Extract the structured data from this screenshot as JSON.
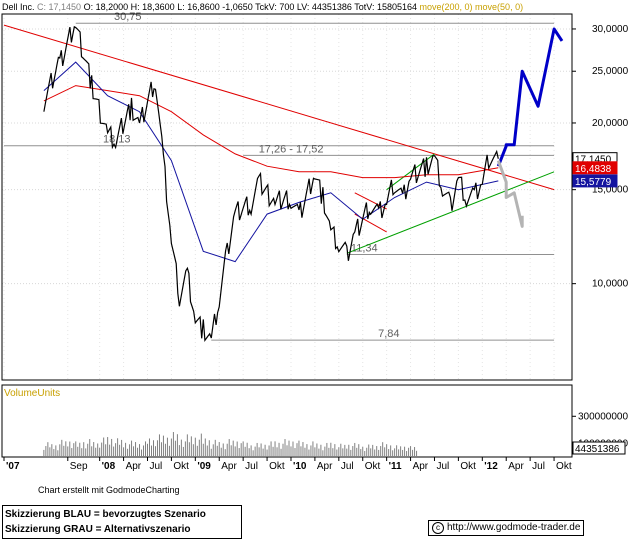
{
  "header": {
    "ticker": "Dell Inc.",
    "close": "C: 17,1450",
    "open": "O: 18,2000",
    "high": "H: 18,3600",
    "low": "L: 16,8600",
    "change": "-1,0650",
    "tick_volume": "TckV: 700",
    "last_volume": "LV: 44351386",
    "total_volume": "TotV: 15805164",
    "ma200_label": "move(200, 0)",
    "ma50_label": "move(50, 0)"
  },
  "colors": {
    "price": "#000000",
    "ma200": "#e00000",
    "ma50": "#1414a0",
    "support": "#00a000",
    "scenario_blue": "#0000c8",
    "scenario_gray": "#b4b4b4"
  },
  "chart_data": [
    {
      "type": "candlestick",
      "title": "",
      "ylabel": "",
      "scale": "log",
      "ylim": [
        6.6,
        32
      ],
      "grid": true,
      "y_ticks": [
        "30,0000",
        "25,0000",
        "20,0000",
        "15,0000",
        "10,0000"
      ],
      "x_ticks": [
        "'07",
        "Sep",
        "'08",
        "Apr",
        "Jul",
        "Okt",
        "'09",
        "Apr",
        "Jul",
        "Okt",
        "'10",
        "Apr",
        "Jul",
        "Okt",
        "'11",
        "Apr",
        "Jul",
        "Okt",
        "'12",
        "Apr",
        "Jul",
        "Okt"
      ],
      "series": [
        {
          "name": "move(200, 0)"
        },
        {
          "name": "move(50, 0)"
        }
      ],
      "price_path": [
        [
          "2007-06",
          22.0
        ],
        [
          "2007-08",
          26.0
        ],
        [
          "2007-10",
          30.75
        ],
        [
          "2007-12",
          23.5
        ],
        [
          "2008-02",
          19.0
        ],
        [
          "2008-03",
          18.5
        ],
        [
          "2008-05",
          21.5
        ],
        [
          "2008-06",
          20.0
        ],
        [
          "2008-08",
          24.0
        ],
        [
          "2008-09",
          17.0
        ],
        [
          "2008-10",
          12.0
        ],
        [
          "2008-11",
          9.5
        ],
        [
          "2008-12",
          10.5
        ],
        [
          "2009-01",
          8.6
        ],
        [
          "2009-02",
          8.2
        ],
        [
          "2009-03",
          7.84
        ],
        [
          "2009-04",
          9.3
        ],
        [
          "2009-05",
          11.5
        ],
        [
          "2009-06",
          13.7
        ],
        [
          "2009-08",
          14.0
        ],
        [
          "2009-09",
          15.5
        ],
        [
          "2009-11",
          14.2
        ],
        [
          "2010-01",
          14.5
        ],
        [
          "2010-02",
          13.5
        ],
        [
          "2010-04",
          16.0
        ],
        [
          "2010-05",
          14.5
        ],
        [
          "2010-06",
          12.5
        ],
        [
          "2010-07",
          11.8
        ],
        [
          "2010-08",
          11.34
        ],
        [
          "2010-09",
          12.5
        ],
        [
          "2010-11",
          14.0
        ],
        [
          "2010-12",
          13.5
        ],
        [
          "2011-01",
          14.2
        ],
        [
          "2011-02",
          15.5
        ],
        [
          "2011-03",
          14.5
        ],
        [
          "2011-04",
          16.0
        ],
        [
          "2011-06",
          16.5
        ],
        [
          "2011-07",
          17.2
        ],
        [
          "2011-08",
          15.0
        ],
        [
          "2011-09",
          14.0
        ],
        [
          "2011-10",
          15.8
        ],
        [
          "2011-11",
          14.5
        ],
        [
          "2011-12",
          14.6
        ],
        [
          "2012-01",
          15.5
        ],
        [
          "2012-02",
          17.5
        ],
        [
          "2012-03",
          17.145
        ]
      ],
      "ma200": [
        [
          "2007-06",
          22.0
        ],
        [
          "2007-10",
          23.5
        ],
        [
          "2008-02",
          23.0
        ],
        [
          "2008-06",
          22.5
        ],
        [
          "2008-10",
          21.0
        ],
        [
          "2009-02",
          19.0
        ],
        [
          "2009-06",
          17.5
        ],
        [
          "2009-10",
          16.6
        ],
        [
          "2010-02",
          16.2
        ],
        [
          "2010-06",
          16.2
        ],
        [
          "2010-10",
          15.8
        ],
        [
          "2011-02",
          15.8
        ],
        [
          "2011-06",
          16.0
        ],
        [
          "2011-10",
          16.0
        ],
        [
          "2012-03",
          16.4838
        ]
      ],
      "ma50": [
        [
          "2007-06",
          23.0
        ],
        [
          "2007-10",
          26.0
        ],
        [
          "2008-02",
          22.5
        ],
        [
          "2008-06",
          21.0
        ],
        [
          "2008-10",
          17.0
        ],
        [
          "2009-02",
          11.5
        ],
        [
          "2009-06",
          11.0
        ],
        [
          "2009-10",
          13.5
        ],
        [
          "2010-02",
          14.2
        ],
        [
          "2010-06",
          14.8
        ],
        [
          "2010-10",
          13.2
        ],
        [
          "2011-02",
          14.5
        ],
        [
          "2011-06",
          15.5
        ],
        [
          "2011-10",
          15.0
        ],
        [
          "2012-03",
          15.5779
        ]
      ],
      "horizontal_levels": [
        {
          "label": "30,75",
          "value": 30.75,
          "from": "2007-10",
          "to": "2012-10"
        },
        {
          "label": "18,13",
          "value": 18.13,
          "from": "2007-01",
          "to": "2012-10"
        },
        {
          "label": "17,26 - 17,52",
          "value": 17.39,
          "from": "2009-07",
          "to": "2012-10"
        },
        {
          "label": "11,34",
          "value": 11.34,
          "from": "2010-08",
          "to": "2012-10"
        },
        {
          "label": "7,84",
          "value": 7.84,
          "from": "2009-03",
          "to": "2012-10"
        }
      ],
      "trend_lines": [
        {
          "name": "downtrend",
          "color": "red",
          "points": [
            [
              "2007-01",
              30.5
            ],
            [
              "2012-10",
              15.0
            ]
          ]
        },
        {
          "name": "support",
          "color": "green",
          "points": [
            [
              "2010-08",
              11.4
            ],
            [
              "2012-10",
              16.2
            ]
          ]
        },
        {
          "name": "channel-upper",
          "color": "green",
          "points": [
            [
              "2011-01",
              15.0
            ],
            [
              "2011-07",
              17.5
            ]
          ]
        },
        {
          "name": "flag-upper",
          "color": "red",
          "points": [
            [
              "2010-09",
              14.8
            ],
            [
              "2011-01",
              13.8
            ]
          ]
        },
        {
          "name": "flag-lower",
          "color": "red",
          "points": [
            [
              "2010-09",
              13.5
            ],
            [
              "2011-01",
              12.5
            ]
          ]
        }
      ],
      "scenario_blue": [
        [
          "2012-03",
          16.6
        ],
        [
          "2012-04",
          18.1
        ],
        [
          "2012-04",
          18.2
        ],
        [
          "2012-05",
          18.2
        ],
        [
          "2012-06",
          25.0
        ],
        [
          "2012-08",
          21.5
        ],
        [
          "2012-10",
          30.0
        ],
        [
          "2012-11",
          28.5
        ]
      ],
      "scenario_gray": [
        [
          "2012-03",
          17.0
        ],
        [
          "2012-04",
          15.5
        ],
        [
          "2012-04",
          14.5
        ],
        [
          "2012-05",
          14.8
        ],
        [
          "2012-06",
          12.8
        ],
        [
          "2012-06",
          13.4
        ]
      ],
      "price_labels": [
        {
          "text": "17,1450",
          "value": 17.145,
          "color": "price"
        },
        {
          "text": "16,4838",
          "value": 16.4838,
          "color": "ma200"
        },
        {
          "text": "15,5779",
          "value": 15.5779,
          "color": "ma50"
        }
      ]
    },
    {
      "type": "bar",
      "title": "VolumeUnits",
      "ylabel": "",
      "y_ticks": [
        "300000000",
        "100000000"
      ],
      "last_label": "44351386",
      "monthly_volume_millions": [
        95,
        90,
        110,
        120,
        100,
        115,
        105,
        125,
        140,
        120,
        110,
        105,
        100,
        130,
        145,
        150,
        160,
        135,
        145,
        150,
        130,
        110,
        105,
        115,
        120,
        100,
        90,
        95,
        100,
        110,
        115,
        120,
        105,
        100,
        95,
        90,
        100,
        85,
        95,
        90,
        80,
        85,
        95,
        90,
        75,
        80,
        70
      ]
    }
  ],
  "credit": "Chart erstellt mit GodmodeCharting",
  "legend": {
    "blue": "Skizzierung BLAU = bevorzugtes Szenario",
    "gray": "Skizzierung GRAU = Alternativszenario"
  },
  "source": {
    "icon": "c",
    "url": "http://www.godmode-trader.de"
  }
}
